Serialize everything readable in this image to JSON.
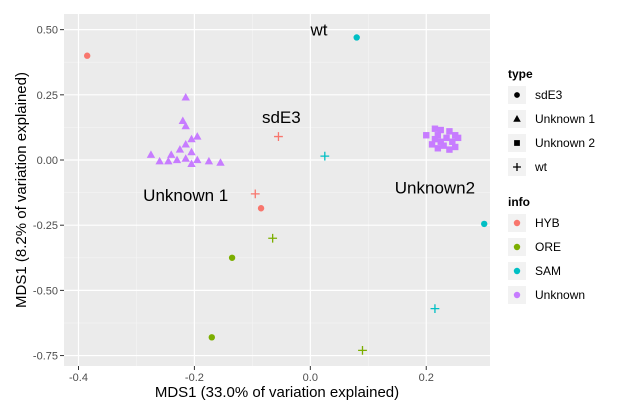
{
  "chart_data": {
    "type": "scatter",
    "xlabel": "MDS1 (33.0% of variation explained)",
    "ylabel": "MDS1 (8.2% of variation explained)",
    "xlim": [
      -0.425,
      0.31
    ],
    "ylim": [
      -0.79,
      0.56
    ],
    "xticks": [
      -0.4,
      -0.2,
      0.0,
      0.2
    ],
    "xtick_labels": [
      "-0.4",
      "-0.2",
      "0.0",
      "0.2"
    ],
    "yticks": [
      -0.75,
      -0.5,
      -0.25,
      0.0,
      0.25,
      0.5
    ],
    "ytick_labels": [
      "-0.75",
      "-0.50",
      "-0.25",
      "0.00",
      "0.25",
      "0.50"
    ],
    "grid": true,
    "legend_placement": "right",
    "legends": {
      "type": {
        "title": "type",
        "items": [
          {
            "label": "sdE3",
            "shape": "circle"
          },
          {
            "label": "Unknown 1",
            "shape": "triangle"
          },
          {
            "label": "Unknown 2",
            "shape": "square"
          },
          {
            "label": "wt",
            "shape": "plus"
          }
        ]
      },
      "info": {
        "title": "info",
        "items": [
          {
            "label": "HYB",
            "color": "#F8766D"
          },
          {
            "label": "ORE",
            "color": "#7CAE00"
          },
          {
            "label": "SAM",
            "color": "#00BFC4"
          },
          {
            "label": "Unknown",
            "color": "#C77CFF"
          }
        ]
      }
    },
    "annotations": [
      {
        "text": "wt",
        "x": 0.015,
        "y": 0.5
      },
      {
        "text": "sdE3",
        "x": -0.05,
        "y": 0.165
      },
      {
        "text": "Unknown 1",
        "x": -0.215,
        "y": -0.135
      },
      {
        "text": "Unknown2",
        "x": 0.215,
        "y": -0.105
      }
    ],
    "points": [
      {
        "x": -0.385,
        "y": 0.4,
        "type": "sdE3",
        "info": "HYB"
      },
      {
        "x": 0.08,
        "y": 0.47,
        "type": "sdE3",
        "info": "SAM"
      },
      {
        "x": -0.085,
        "y": -0.185,
        "type": "sdE3",
        "info": "HYB"
      },
      {
        "x": -0.135,
        "y": -0.375,
        "type": "sdE3",
        "info": "ORE"
      },
      {
        "x": -0.17,
        "y": -0.68,
        "type": "sdE3",
        "info": "ORE"
      },
      {
        "x": 0.3,
        "y": -0.245,
        "type": "sdE3",
        "info": "SAM"
      },
      {
        "x": -0.055,
        "y": 0.09,
        "type": "wt",
        "info": "HYB"
      },
      {
        "x": 0.025,
        "y": 0.015,
        "type": "wt",
        "info": "SAM"
      },
      {
        "x": -0.095,
        "y": -0.13,
        "type": "wt",
        "info": "HYB"
      },
      {
        "x": -0.065,
        "y": -0.3,
        "type": "wt",
        "info": "ORE"
      },
      {
        "x": 0.215,
        "y": -0.57,
        "type": "wt",
        "info": "SAM"
      },
      {
        "x": 0.09,
        "y": -0.73,
        "type": "wt",
        "info": "ORE"
      },
      {
        "x": -0.215,
        "y": 0.24,
        "type": "Unknown 1",
        "info": "Unknown"
      },
      {
        "x": -0.22,
        "y": 0.15,
        "type": "Unknown 1",
        "info": "Unknown"
      },
      {
        "x": -0.215,
        "y": 0.13,
        "type": "Unknown 1",
        "info": "Unknown"
      },
      {
        "x": -0.205,
        "y": 0.08,
        "type": "Unknown 1",
        "info": "Unknown"
      },
      {
        "x": -0.195,
        "y": 0.09,
        "type": "Unknown 1",
        "info": "Unknown"
      },
      {
        "x": -0.215,
        "y": 0.06,
        "type": "Unknown 1",
        "info": "Unknown"
      },
      {
        "x": -0.225,
        "y": 0.04,
        "type": "Unknown 1",
        "info": "Unknown"
      },
      {
        "x": -0.205,
        "y": 0.03,
        "type": "Unknown 1",
        "info": "Unknown"
      },
      {
        "x": -0.24,
        "y": 0.02,
        "type": "Unknown 1",
        "info": "Unknown"
      },
      {
        "x": -0.215,
        "y": 0.005,
        "type": "Unknown 1",
        "info": "Unknown"
      },
      {
        "x": -0.23,
        "y": 0.0,
        "type": "Unknown 1",
        "info": "Unknown"
      },
      {
        "x": -0.245,
        "y": -0.005,
        "type": "Unknown 1",
        "info": "Unknown"
      },
      {
        "x": -0.275,
        "y": 0.02,
        "type": "Unknown 1",
        "info": "Unknown"
      },
      {
        "x": -0.26,
        "y": -0.005,
        "type": "Unknown 1",
        "info": "Unknown"
      },
      {
        "x": -0.195,
        "y": 0.0,
        "type": "Unknown 1",
        "info": "Unknown"
      },
      {
        "x": -0.175,
        "y": -0.005,
        "type": "Unknown 1",
        "info": "Unknown"
      },
      {
        "x": -0.155,
        "y": -0.01,
        "type": "Unknown 1",
        "info": "Unknown"
      },
      {
        "x": -0.205,
        "y": -0.015,
        "type": "Unknown 1",
        "info": "Unknown"
      },
      {
        "x": 0.215,
        "y": 0.12,
        "type": "Unknown 2",
        "info": "Unknown"
      },
      {
        "x": 0.225,
        "y": 0.115,
        "type": "Unknown 2",
        "info": "Unknown"
      },
      {
        "x": 0.24,
        "y": 0.11,
        "type": "Unknown 2",
        "info": "Unknown"
      },
      {
        "x": 0.25,
        "y": 0.095,
        "type": "Unknown 2",
        "info": "Unknown"
      },
      {
        "x": 0.2,
        "y": 0.095,
        "type": "Unknown 2",
        "info": "Unknown"
      },
      {
        "x": 0.22,
        "y": 0.095,
        "type": "Unknown 2",
        "info": "Unknown"
      },
      {
        "x": 0.235,
        "y": 0.085,
        "type": "Unknown 2",
        "info": "Unknown"
      },
      {
        "x": 0.215,
        "y": 0.08,
        "type": "Unknown 2",
        "info": "Unknown"
      },
      {
        "x": 0.225,
        "y": 0.07,
        "type": "Unknown 2",
        "info": "Unknown"
      },
      {
        "x": 0.245,
        "y": 0.07,
        "type": "Unknown 2",
        "info": "Unknown"
      },
      {
        "x": 0.21,
        "y": 0.06,
        "type": "Unknown 2",
        "info": "Unknown"
      },
      {
        "x": 0.23,
        "y": 0.055,
        "type": "Unknown 2",
        "info": "Unknown"
      },
      {
        "x": 0.25,
        "y": 0.05,
        "type": "Unknown 2",
        "info": "Unknown"
      },
      {
        "x": 0.22,
        "y": 0.045,
        "type": "Unknown 2",
        "info": "Unknown"
      },
      {
        "x": 0.24,
        "y": 0.04,
        "type": "Unknown 2",
        "info": "Unknown"
      },
      {
        "x": 0.255,
        "y": 0.085,
        "type": "Unknown 2",
        "info": "Unknown"
      }
    ]
  }
}
